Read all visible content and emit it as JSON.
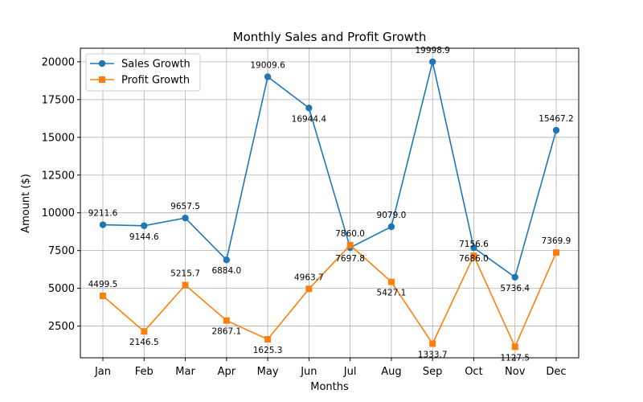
{
  "chart_data": {
    "type": "line",
    "title": "Monthly Sales and Profit Growth",
    "xlabel": "Months",
    "ylabel": "Amount ($)",
    "categories": [
      "Jan",
      "Feb",
      "Mar",
      "Apr",
      "May",
      "Jun",
      "Jul",
      "Aug",
      "Sep",
      "Oct",
      "Nov",
      "Dec"
    ],
    "ylim": [
      400,
      20900
    ],
    "yticks": [
      2500,
      5000,
      7500,
      10000,
      12500,
      15000,
      17500,
      20000
    ],
    "grid": true,
    "legend_position": "top-left",
    "series": [
      {
        "name": "Sales Growth",
        "color": "#1f77b4",
        "marker": "circle",
        "values": [
          9211.6,
          9144.6,
          9657.5,
          6884.0,
          19009.6,
          16944.4,
          7697.8,
          9079.0,
          19998.9,
          7686.0,
          5736.4,
          15467.2
        ],
        "labels": [
          "9211.6",
          "9144.6",
          "9657.5",
          "6884.0",
          "19009.6",
          "16944.4",
          "7697.8",
          "9079.0",
          "19998.9",
          "7686.0",
          "5736.4",
          "15467.2"
        ]
      },
      {
        "name": "Profit Growth",
        "color": "#ff7f0e",
        "marker": "square",
        "values": [
          4499.5,
          2146.5,
          5215.7,
          2867.1,
          1625.3,
          4963.7,
          7860.0,
          5427.1,
          1333.7,
          7156.6,
          1127.5,
          7369.9
        ],
        "labels": [
          "4499.5",
          "2146.5",
          "5215.7",
          "2867.1",
          "1625.3",
          "4963.7",
          "7860.0",
          "5427.1",
          "1333.7",
          "7156.6",
          "1127.5",
          "7369.9"
        ]
      }
    ]
  }
}
